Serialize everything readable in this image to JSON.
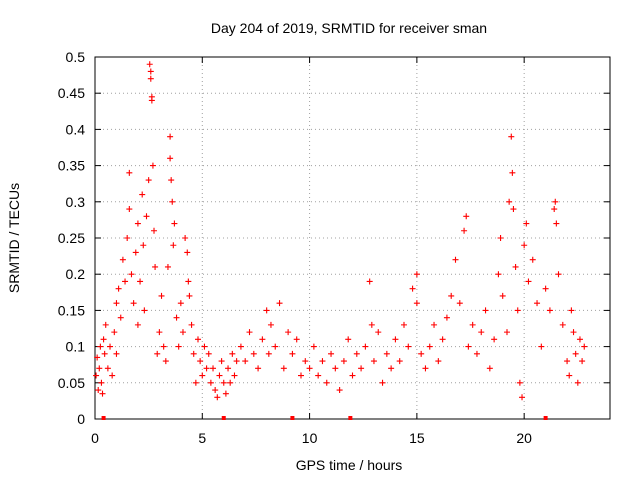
{
  "chart_data": {
    "type": "scatter",
    "title": "Day 204 of 2019, SRMTID for receiver sman",
    "xlabel": "GPS time / hours",
    "ylabel": "SRMTID / TECUs",
    "xlim": [
      0,
      24
    ],
    "ylim": [
      0,
      0.5
    ],
    "x_ticks": [
      0,
      5,
      10,
      15,
      20
    ],
    "x_tick_labels": [
      "0",
      "5",
      "10",
      "15",
      "20"
    ],
    "y_ticks": [
      0,
      0.05,
      0.1,
      0.15,
      0.2,
      0.25,
      0.3,
      0.35,
      0.4,
      0.45,
      0.5
    ],
    "y_tick_labels": [
      "0",
      "0.05",
      "0.1",
      "0.15",
      "0.2",
      "0.25",
      "0.3",
      "0.35",
      "0.4",
      "0.45",
      "0.5"
    ],
    "grid": true,
    "marker": "+",
    "series": [
      {
        "name": "SRMTID",
        "color": "#ff0000",
        "points": [
          [
            0.05,
            0.06
          ],
          [
            0.1,
            0.085
          ],
          [
            0.15,
            0.04
          ],
          [
            0.2,
            0.07
          ],
          [
            0.25,
            0.1
          ],
          [
            0.3,
            0.05
          ],
          [
            0.35,
            0.035
          ],
          [
            0.4,
            0.11
          ],
          [
            0.45,
            0.09
          ],
          [
            0.5,
            0.13
          ],
          [
            0.6,
            0.07
          ],
          [
            0.7,
            0.1
          ],
          [
            0.8,
            0.06
          ],
          [
            0.9,
            0.12
          ],
          [
            1.0,
            0.09
          ],
          [
            1.0,
            0.16
          ],
          [
            1.1,
            0.18
          ],
          [
            1.2,
            0.14
          ],
          [
            1.3,
            0.22
          ],
          [
            1.4,
            0.19
          ],
          [
            1.5,
            0.25
          ],
          [
            1.6,
            0.29
          ],
          [
            1.6,
            0.34
          ],
          [
            1.7,
            0.2
          ],
          [
            1.8,
            0.16
          ],
          [
            1.9,
            0.23
          ],
          [
            2.0,
            0.27
          ],
          [
            2.0,
            0.13
          ],
          [
            2.1,
            0.19
          ],
          [
            2.2,
            0.31
          ],
          [
            2.25,
            0.24
          ],
          [
            2.3,
            0.15
          ],
          [
            2.4,
            0.28
          ],
          [
            2.5,
            0.33
          ],
          [
            2.55,
            0.49
          ],
          [
            2.6,
            0.48
          ],
          [
            2.6,
            0.47
          ],
          [
            2.65,
            0.44
          ],
          [
            2.65,
            0.445
          ],
          [
            2.7,
            0.35
          ],
          [
            2.75,
            0.26
          ],
          [
            2.8,
            0.21
          ],
          [
            2.9,
            0.09
          ],
          [
            3.0,
            0.12
          ],
          [
            3.1,
            0.17
          ],
          [
            3.2,
            0.1
          ],
          [
            3.3,
            0.08
          ],
          [
            3.4,
            0.21
          ],
          [
            3.5,
            0.39
          ],
          [
            3.5,
            0.36
          ],
          [
            3.55,
            0.33
          ],
          [
            3.6,
            0.3
          ],
          [
            3.65,
            0.24
          ],
          [
            3.7,
            0.27
          ],
          [
            3.8,
            0.14
          ],
          [
            3.9,
            0.1
          ],
          [
            4.0,
            0.16
          ],
          [
            4.1,
            0.12
          ],
          [
            4.2,
            0.25
          ],
          [
            4.3,
            0.23
          ],
          [
            4.35,
            0.19
          ],
          [
            4.4,
            0.17
          ],
          [
            4.5,
            0.13
          ],
          [
            4.6,
            0.09
          ],
          [
            4.7,
            0.05
          ],
          [
            4.8,
            0.11
          ],
          [
            4.9,
            0.08
          ],
          [
            5.0,
            0.06
          ],
          [
            5.1,
            0.1
          ],
          [
            5.2,
            0.07
          ],
          [
            5.3,
            0.09
          ],
          [
            5.4,
            0.05
          ],
          [
            5.5,
            0.07
          ],
          [
            5.6,
            0.04
          ],
          [
            5.7,
            0.03
          ],
          [
            5.8,
            0.06
          ],
          [
            5.9,
            0.08
          ],
          [
            6.0,
            0.05
          ],
          [
            6.1,
            0.035
          ],
          [
            6.2,
            0.07
          ],
          [
            6.3,
            0.05
          ],
          [
            6.4,
            0.09
          ],
          [
            6.5,
            0.06
          ],
          [
            6.6,
            0.08
          ],
          [
            6.8,
            0.1
          ],
          [
            7.0,
            0.08
          ],
          [
            7.2,
            0.12
          ],
          [
            7.4,
            0.09
          ],
          [
            7.6,
            0.07
          ],
          [
            7.8,
            0.11
          ],
          [
            8.0,
            0.15
          ],
          [
            8.1,
            0.09
          ],
          [
            8.2,
            0.13
          ],
          [
            8.4,
            0.1
          ],
          [
            8.6,
            0.16
          ],
          [
            8.8,
            0.07
          ],
          [
            9.0,
            0.12
          ],
          [
            9.2,
            0.09
          ],
          [
            9.4,
            0.11
          ],
          [
            9.6,
            0.06
          ],
          [
            9.8,
            0.08
          ],
          [
            10.0,
            0.07
          ],
          [
            10.2,
            0.1
          ],
          [
            10.4,
            0.06
          ],
          [
            10.6,
            0.08
          ],
          [
            10.8,
            0.05
          ],
          [
            11.0,
            0.09
          ],
          [
            11.2,
            0.07
          ],
          [
            11.4,
            0.04
          ],
          [
            11.6,
            0.08
          ],
          [
            11.8,
            0.11
          ],
          [
            12.0,
            0.06
          ],
          [
            12.2,
            0.09
          ],
          [
            12.4,
            0.07
          ],
          [
            12.6,
            0.1
          ],
          [
            12.8,
            0.19
          ],
          [
            12.9,
            0.13
          ],
          [
            13.0,
            0.08
          ],
          [
            13.2,
            0.12
          ],
          [
            13.4,
            0.05
          ],
          [
            13.6,
            0.09
          ],
          [
            13.8,
            0.07
          ],
          [
            14.0,
            0.11
          ],
          [
            14.2,
            0.08
          ],
          [
            14.4,
            0.13
          ],
          [
            14.6,
            0.1
          ],
          [
            14.8,
            0.18
          ],
          [
            15.0,
            0.16
          ],
          [
            15.0,
            0.2
          ],
          [
            15.2,
            0.09
          ],
          [
            15.4,
            0.07
          ],
          [
            15.6,
            0.1
          ],
          [
            15.8,
            0.13
          ],
          [
            16.0,
            0.08
          ],
          [
            16.2,
            0.11
          ],
          [
            16.4,
            0.14
          ],
          [
            16.6,
            0.17
          ],
          [
            16.8,
            0.22
          ],
          [
            17.0,
            0.16
          ],
          [
            17.2,
            0.26
          ],
          [
            17.3,
            0.28
          ],
          [
            17.4,
            0.1
          ],
          [
            17.6,
            0.13
          ],
          [
            17.8,
            0.09
          ],
          [
            18.0,
            0.12
          ],
          [
            18.2,
            0.15
          ],
          [
            18.4,
            0.07
          ],
          [
            18.6,
            0.11
          ],
          [
            18.8,
            0.2
          ],
          [
            18.9,
            0.25
          ],
          [
            19.0,
            0.17
          ],
          [
            19.2,
            0.12
          ],
          [
            19.3,
            0.3
          ],
          [
            19.4,
            0.39
          ],
          [
            19.45,
            0.34
          ],
          [
            19.5,
            0.29
          ],
          [
            19.6,
            0.21
          ],
          [
            19.7,
            0.15
          ],
          [
            19.8,
            0.05
          ],
          [
            19.9,
            0.03
          ],
          [
            20.0,
            0.24
          ],
          [
            20.1,
            0.27
          ],
          [
            20.2,
            0.19
          ],
          [
            20.4,
            0.22
          ],
          [
            20.6,
            0.16
          ],
          [
            20.8,
            0.1
          ],
          [
            21.0,
            0.18
          ],
          [
            21.2,
            0.15
          ],
          [
            21.4,
            0.29
          ],
          [
            21.45,
            0.3
          ],
          [
            21.5,
            0.27
          ],
          [
            21.6,
            0.2
          ],
          [
            21.8,
            0.13
          ],
          [
            22.0,
            0.08
          ],
          [
            22.1,
            0.06
          ],
          [
            22.2,
            0.15
          ],
          [
            22.3,
            0.12
          ],
          [
            22.4,
            0.09
          ],
          [
            22.5,
            0.05
          ],
          [
            22.6,
            0.11
          ],
          [
            22.7,
            0.08
          ],
          [
            22.8,
            0.1
          ]
        ]
      }
    ],
    "baseline_markers_x": [
      0.4,
      6.0,
      9.2,
      11.9,
      21.0
    ]
  }
}
